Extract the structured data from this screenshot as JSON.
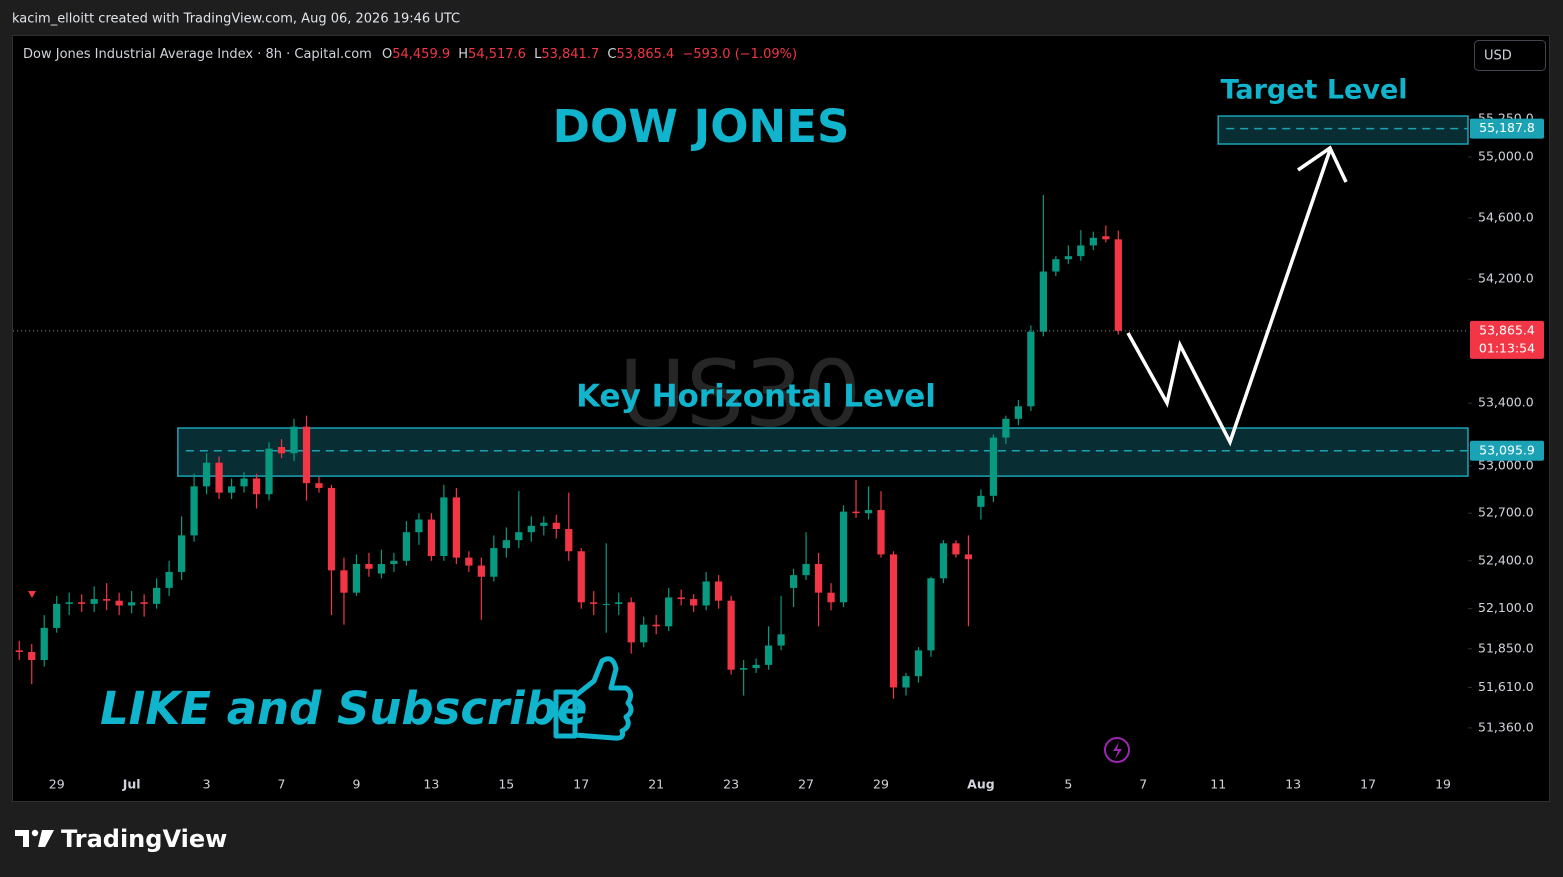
{
  "header": {
    "attribution": "kacim_elloitt created with TradingView.com, Aug 06, 2026 19:46 UTC",
    "brand": "TradingView"
  },
  "chart_data": {
    "type": "candlestick",
    "symbol_title": "Dow Jones Industrial Average Index · 8h · Capital.com",
    "ohlc_legend": [
      {
        "key": "O",
        "value": "54,459.9"
      },
      {
        "key": "H",
        "value": "54,517.6"
      },
      {
        "key": "L",
        "value": "53,841.7"
      },
      {
        "key": "C",
        "value": "53,865.4"
      }
    ],
    "change": "−593.0 (−1.09%)",
    "currency": "USD",
    "watermark": "US30",
    "title": "DOW JONES",
    "annotations": {
      "target": "Target Level",
      "key": "Key Horizontal Level",
      "cta": "LIKE and Subscribe"
    },
    "up_color": "#089981",
    "down_color": "#f23645",
    "zone_color": "#1ba3b5",
    "candles": {
      "open": [
        51840,
        51830,
        51780,
        51980,
        52130,
        52140,
        52130,
        52160,
        52150,
        52120,
        52140,
        52130,
        52230,
        52330,
        52560,
        52870,
        53020,
        52830,
        52870,
        52920,
        52820,
        53120,
        53080,
        53250,
        52890,
        52860,
        52340,
        52200,
        52380,
        52320,
        52380,
        52400,
        52580,
        52660,
        52430,
        52800,
        52420,
        52370,
        52300,
        52480,
        52530,
        52580,
        52620,
        52640,
        52600,
        52460,
        52140,
        52130,
        52130,
        52140,
        51890,
        52000,
        51990,
        52170,
        52160,
        52120,
        52270,
        52150,
        51720,
        51730,
        51750,
        51870,
        52230,
        52310,
        52380,
        52200,
        52140,
        52710,
        52700,
        52720,
        52440,
        51610,
        51680,
        51840,
        52290,
        52510,
        52440,
        52740,
        52810,
        53180,
        53300,
        53380,
        53860,
        54250,
        54330,
        54350,
        54420,
        54480,
        54459.9
      ],
      "high": [
        51900,
        51880,
        52060,
        52180,
        52200,
        52190,
        52240,
        52260,
        52200,
        52210,
        52190,
        52290,
        52400,
        52680,
        52950,
        53080,
        53060,
        52920,
        52960,
        52950,
        53150,
        53170,
        53300,
        53320,
        52930,
        52880,
        52420,
        52440,
        52450,
        52470,
        52450,
        52650,
        52700,
        52700,
        52880,
        52860,
        52460,
        52420,
        52560,
        52610,
        52840,
        52680,
        52680,
        52690,
        52830,
        52480,
        52210,
        52510,
        52200,
        52170,
        52050,
        52060,
        52230,
        52220,
        52190,
        52330,
        52310,
        52180,
        51780,
        51790,
        51990,
        52180,
        52350,
        52580,
        52450,
        52260,
        52750,
        52910,
        52870,
        52840,
        52460,
        51700,
        51860,
        52300,
        52530,
        52530,
        52560,
        52850,
        53200,
        53320,
        53420,
        53900,
        54750,
        54350,
        54420,
        54520,
        54510,
        54550,
        54517.6
      ],
      "low": [
        51780,
        51630,
        51740,
        51950,
        52060,
        52080,
        52080,
        52090,
        52060,
        52070,
        52050,
        52100,
        52180,
        52280,
        52520,
        52820,
        52790,
        52790,
        52830,
        52730,
        52780,
        53050,
        53030,
        52780,
        52830,
        52060,
        52000,
        52180,
        52300,
        52290,
        52330,
        52370,
        52500,
        52400,
        52400,
        52380,
        52330,
        52030,
        52270,
        52420,
        52480,
        52520,
        52560,
        52540,
        52400,
        52100,
        52060,
        51950,
        52060,
        51820,
        51860,
        51940,
        51960,
        52120,
        52080,
        52090,
        52100,
        51690,
        51560,
        51700,
        51720,
        51840,
        52110,
        52280,
        51990,
        52090,
        52110,
        52670,
        52660,
        52420,
        51540,
        51560,
        51640,
        51800,
        52260,
        52420,
        51990,
        52660,
        52770,
        53140,
        53260,
        53350,
        53830,
        54220,
        54300,
        54320,
        54390,
        54440,
        53841.7
      ],
      "close": [
        51830,
        51780,
        51980,
        52130,
        52140,
        52130,
        52160,
        52150,
        52120,
        52140,
        52130,
        52230,
        52330,
        52560,
        52870,
        53020,
        52830,
        52870,
        52920,
        52820,
        53110,
        53080,
        53250,
        52890,
        52860,
        52340,
        52200,
        52380,
        52350,
        52380,
        52400,
        52580,
        52660,
        52430,
        52800,
        52420,
        52370,
        52300,
        52480,
        52530,
        52580,
        52620,
        52640,
        52600,
        52460,
        52140,
        52130,
        52130,
        52140,
        51890,
        52000,
        51990,
        52170,
        52160,
        52120,
        52270,
        52150,
        51720,
        51730,
        51750,
        51870,
        51940,
        52310,
        52380,
        52200,
        52140,
        52710,
        52700,
        52720,
        52440,
        51610,
        51680,
        51840,
        52290,
        52510,
        52440,
        52410,
        52810,
        53180,
        53300,
        53380,
        53860,
        54250,
        54330,
        54350,
        54420,
        54470,
        54460,
        53865.4
      ]
    },
    "xlim": [
      -0.5,
      116
    ],
    "xticks": [
      {
        "value": 3,
        "label": "29"
      },
      {
        "value": 9,
        "label": "Jul"
      },
      {
        "value": 15,
        "label": "3"
      },
      {
        "value": 21,
        "label": "7"
      },
      {
        "value": 27,
        "label": "9"
      },
      {
        "value": 33,
        "label": "13"
      },
      {
        "value": 39,
        "label": "15"
      },
      {
        "value": 45,
        "label": "17"
      },
      {
        "value": 51,
        "label": "21"
      },
      {
        "value": 57,
        "label": "23"
      },
      {
        "value": 63,
        "label": "27"
      },
      {
        "value": 69,
        "label": "29"
      },
      {
        "value": 77,
        "label": "Aug"
      },
      {
        "value": 84,
        "label": "5"
      },
      {
        "value": 90,
        "label": "7"
      },
      {
        "value": 96,
        "label": "11"
      },
      {
        "value": 102,
        "label": "13"
      },
      {
        "value": 108,
        "label": "17"
      },
      {
        "value": 114,
        "label": "19"
      }
    ],
    "ylim": [
      50918,
      55811
    ],
    "log_scale": true,
    "yticks": [
      {
        "value": 55250,
        "label": "55,250.0"
      },
      {
        "value": 55000,
        "label": "55,000.0"
      },
      {
        "value": 54600,
        "label": "54,600.0"
      },
      {
        "value": 54200,
        "label": "54,200.0"
      },
      {
        "value": 53400,
        "label": "53,400.0"
      },
      {
        "value": 53000,
        "label": "53,000.0"
      },
      {
        "value": 52700,
        "label": "52,700.0"
      },
      {
        "value": 52400,
        "label": "52,400.0"
      },
      {
        "value": 52100,
        "label": "52,100.0"
      },
      {
        "value": 51850,
        "label": "51,850.0"
      },
      {
        "value": 51610,
        "label": "51,610.0"
      },
      {
        "value": 51360,
        "label": "51,360.0"
      }
    ],
    "key_zone": {
      "x_start": 12.7,
      "ylim": [
        52935,
        53241
      ],
      "level": {
        "value": 53095.9,
        "label": "53,095.9"
      }
    },
    "target_zone": {
      "x_start": 96,
      "ylim": [
        55086,
        55271
      ],
      "level": {
        "value": 55187.8,
        "label": "55,187.8"
      }
    },
    "last_price": {
      "value": 53865.4,
      "label": "53,865.4"
    },
    "countdown": "01:13:54"
  }
}
